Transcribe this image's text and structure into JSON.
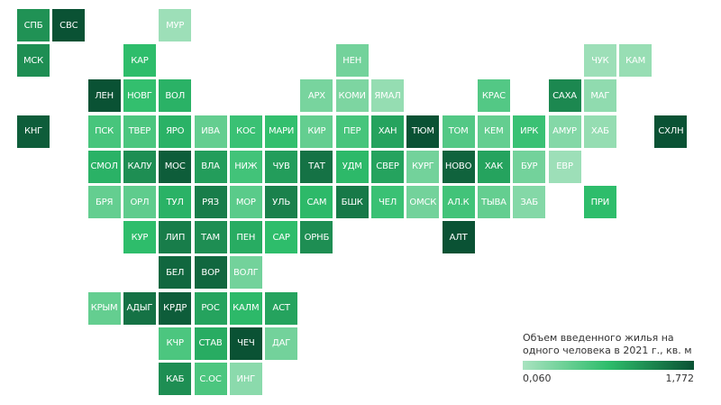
{
  "legend": {
    "title": "Объем введенного жилья на одного человека в 2021 г., кв. м",
    "min_label": "0,060",
    "max_label": "1,772",
    "color_low": "#a9e3c0",
    "color_high": "#0a5234"
  },
  "tiles": [
    {
      "label": "СПБ",
      "col": 0,
      "row": 0,
      "level": 0.7
    },
    {
      "label": "СВС",
      "col": 1,
      "row": 0,
      "level": 1.0
    },
    {
      "label": "МУР",
      "col": 4,
      "row": 0,
      "level": 0.05
    },
    {
      "label": "МСК",
      "col": 0,
      "row": 1,
      "level": 0.72
    },
    {
      "label": "КАР",
      "col": 3,
      "row": 1,
      "level": 0.5
    },
    {
      "label": "НЕН",
      "col": 9,
      "row": 1,
      "level": 0.22
    },
    {
      "label": "ЧУК",
      "col": 16,
      "row": 1,
      "level": 0.05
    },
    {
      "label": "КАМ",
      "col": 17,
      "row": 1,
      "level": 0.07
    },
    {
      "label": "ЛЕН",
      "col": 2,
      "row": 2,
      "level": 1.0
    },
    {
      "label": "НОВГ",
      "col": 3,
      "row": 2,
      "level": 0.48
    },
    {
      "label": "ВОЛ",
      "col": 4,
      "row": 2,
      "level": 0.55
    },
    {
      "label": "АРХ",
      "col": 8,
      "row": 2,
      "level": 0.2
    },
    {
      "label": "КОМИ",
      "col": 9,
      "row": 2,
      "level": 0.18
    },
    {
      "label": "ЯМАЛ",
      "col": 10,
      "row": 2,
      "level": 0.08
    },
    {
      "label": "КРАС",
      "col": 13,
      "row": 2,
      "level": 0.35
    },
    {
      "label": "САХА",
      "col": 15,
      "row": 2,
      "level": 0.75
    },
    {
      "label": "МАГ",
      "col": 16,
      "row": 2,
      "level": 0.1
    },
    {
      "label": "КНГ",
      "col": 0,
      "row": 3,
      "level": 0.95
    },
    {
      "label": "ПСК",
      "col": 2,
      "row": 3,
      "level": 0.4
    },
    {
      "label": "ТВЕР",
      "col": 3,
      "row": 3,
      "level": 0.38
    },
    {
      "label": "ЯРО",
      "col": 4,
      "row": 3,
      "level": 0.55
    },
    {
      "label": "ИВА",
      "col": 5,
      "row": 3,
      "level": 0.28
    },
    {
      "label": "КОС",
      "col": 6,
      "row": 3,
      "level": 0.45
    },
    {
      "label": "МАРИ",
      "col": 7,
      "row": 3,
      "level": 0.48
    },
    {
      "label": "КИР",
      "col": 8,
      "row": 3,
      "level": 0.28
    },
    {
      "label": "ПЕР",
      "col": 9,
      "row": 3,
      "level": 0.4
    },
    {
      "label": "ХАН",
      "col": 10,
      "row": 3,
      "level": 0.62
    },
    {
      "label": "ТЮМ",
      "col": 11,
      "row": 3,
      "level": 1.0
    },
    {
      "label": "ТОМ",
      "col": 12,
      "row": 3,
      "level": 0.35
    },
    {
      "label": "КЕМ",
      "col": 13,
      "row": 3,
      "level": 0.28
    },
    {
      "label": "ИРК",
      "col": 14,
      "row": 3,
      "level": 0.45
    },
    {
      "label": "АМУР",
      "col": 15,
      "row": 3,
      "level": 0.15
    },
    {
      "label": "ХАБ",
      "col": 16,
      "row": 3,
      "level": 0.08
    },
    {
      "label": "СХЛН",
      "col": 18,
      "row": 3,
      "level": 1.0
    },
    {
      "label": "СМОЛ",
      "col": 2,
      "row": 4,
      "level": 0.55
    },
    {
      "label": "КАЛУ",
      "col": 3,
      "row": 4,
      "level": 0.72
    },
    {
      "label": "МОС",
      "col": 4,
      "row": 4,
      "level": 0.95
    },
    {
      "label": "ВЛА",
      "col": 5,
      "row": 4,
      "level": 0.65
    },
    {
      "label": "НИЖ",
      "col": 6,
      "row": 4,
      "level": 0.42
    },
    {
      "label": "ЧУВ",
      "col": 7,
      "row": 4,
      "level": 0.65
    },
    {
      "label": "ТАТ",
      "col": 8,
      "row": 4,
      "level": 0.85
    },
    {
      "label": "УДМ",
      "col": 9,
      "row": 4,
      "level": 0.52
    },
    {
      "label": "СВЕР",
      "col": 10,
      "row": 4,
      "level": 0.62
    },
    {
      "label": "КУРГ",
      "col": 11,
      "row": 4,
      "level": 0.22
    },
    {
      "label": "НОВО",
      "col": 12,
      "row": 4,
      "level": 0.92
    },
    {
      "label": "ХАК",
      "col": 13,
      "row": 4,
      "level": 0.62
    },
    {
      "label": "БУР",
      "col": 14,
      "row": 4,
      "level": 0.22
    },
    {
      "label": "ЕВР",
      "col": 15,
      "row": 4,
      "level": 0.05
    },
    {
      "label": "БРЯ",
      "col": 2,
      "row": 5,
      "level": 0.28
    },
    {
      "label": "ОРЛ",
      "col": 3,
      "row": 5,
      "level": 0.3
    },
    {
      "label": "ТУЛ",
      "col": 4,
      "row": 5,
      "level": 0.55
    },
    {
      "label": "РЯЗ",
      "col": 5,
      "row": 5,
      "level": 0.8
    },
    {
      "label": "МОР",
      "col": 6,
      "row": 5,
      "level": 0.32
    },
    {
      "label": "УЛЬ",
      "col": 7,
      "row": 5,
      "level": 0.78
    },
    {
      "label": "САМ",
      "col": 8,
      "row": 5,
      "level": 0.52
    },
    {
      "label": "БШК",
      "col": 9,
      "row": 5,
      "level": 0.82
    },
    {
      "label": "ЧЕЛ",
      "col": 10,
      "row": 5,
      "level": 0.45
    },
    {
      "label": "ОМСК",
      "col": 11,
      "row": 5,
      "level": 0.22
    },
    {
      "label": "АЛ.К",
      "col": 12,
      "row": 5,
      "level": 0.42
    },
    {
      "label": "ТЫВА",
      "col": 13,
      "row": 5,
      "level": 0.28
    },
    {
      "label": "ЗАБ",
      "col": 14,
      "row": 5,
      "level": 0.15
    },
    {
      "label": "ПРИ",
      "col": 16,
      "row": 5,
      "level": 0.5
    },
    {
      "label": "КУР",
      "col": 3,
      "row": 6,
      "level": 0.5
    },
    {
      "label": "ЛИП",
      "col": 4,
      "row": 6,
      "level": 0.8
    },
    {
      "label": "ТАМ",
      "col": 5,
      "row": 6,
      "level": 0.72
    },
    {
      "label": "ПЕН",
      "col": 6,
      "row": 6,
      "level": 0.58
    },
    {
      "label": "САР",
      "col": 7,
      "row": 6,
      "level": 0.5
    },
    {
      "label": "ОРНБ",
      "col": 8,
      "row": 6,
      "level": 0.72
    },
    {
      "label": "АЛТ",
      "col": 12,
      "row": 6,
      "level": 1.0
    },
    {
      "label": "БЕЛ",
      "col": 4,
      "row": 7,
      "level": 0.9
    },
    {
      "label": "ВОР",
      "col": 5,
      "row": 7,
      "level": 0.9
    },
    {
      "label": "ВОЛГ",
      "col": 6,
      "row": 7,
      "level": 0.22
    },
    {
      "label": "КРЫМ",
      "col": 2,
      "row": 8,
      "level": 0.28
    },
    {
      "label": "АДЫГ",
      "col": 3,
      "row": 8,
      "level": 0.85
    },
    {
      "label": "КРДР",
      "col": 4,
      "row": 8,
      "level": 0.95
    },
    {
      "label": "РОС",
      "col": 5,
      "row": 8,
      "level": 0.62
    },
    {
      "label": "КАЛМ",
      "col": 6,
      "row": 8,
      "level": 0.52
    },
    {
      "label": "АСТ",
      "col": 7,
      "row": 8,
      "level": 0.62
    },
    {
      "label": "КЧР",
      "col": 4,
      "row": 9,
      "level": 0.38
    },
    {
      "label": "СТАВ",
      "col": 5,
      "row": 9,
      "level": 0.58
    },
    {
      "label": "ЧЕЧ",
      "col": 6,
      "row": 9,
      "level": 1.0
    },
    {
      "label": "ДАГ",
      "col": 7,
      "row": 9,
      "level": 0.22
    },
    {
      "label": "КАБ",
      "col": 4,
      "row": 10,
      "level": 0.72
    },
    {
      "label": "С.ОС",
      "col": 5,
      "row": 10,
      "level": 0.38
    },
    {
      "label": "ИНГ",
      "col": 6,
      "row": 10,
      "level": 0.12
    }
  ]
}
